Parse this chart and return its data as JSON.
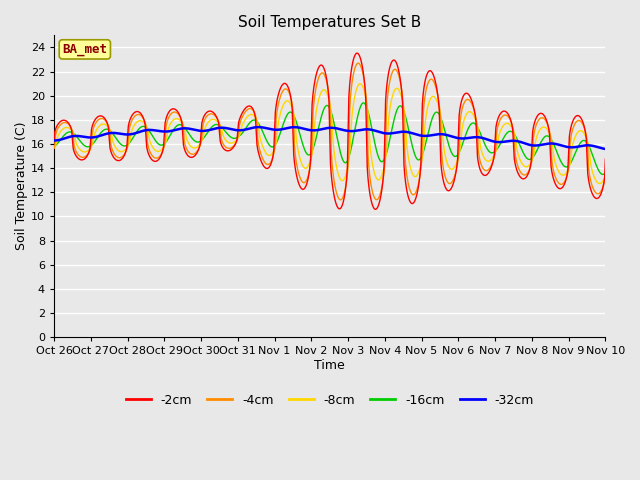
{
  "title": "Soil Temperatures Set B",
  "xlabel": "Time",
  "ylabel": "Soil Temperature (C)",
  "ylim": [
    0,
    25
  ],
  "yticks": [
    0,
    2,
    4,
    6,
    8,
    10,
    12,
    14,
    16,
    18,
    20,
    22,
    24
  ],
  "x_labels": [
    "Oct 26",
    "Oct 27",
    "Oct 28",
    "Oct 29",
    "Oct 30",
    "Oct 31",
    "Nov 1",
    "Nov 2",
    "Nov 3",
    "Nov 4",
    "Nov 5",
    "Nov 6",
    "Nov 7",
    "Nov 8",
    "Nov 9",
    "Nov 10"
  ],
  "annotation_text": "BA_met",
  "annotation_color": "#8B0000",
  "annotation_bg": "#FFFF99",
  "bg_color": "#E8E8E8",
  "grid_color": "white",
  "line_colors": {
    "m2cm": "#FF0000",
    "m4cm": "#FF8C00",
    "m8cm": "#FFD700",
    "m16cm": "#00CC00",
    "m32cm": "#0000FF"
  },
  "legend_labels": [
    "-2cm",
    "-4cm",
    "-8cm",
    "-16cm",
    "-32cm"
  ],
  "num_points": 721
}
